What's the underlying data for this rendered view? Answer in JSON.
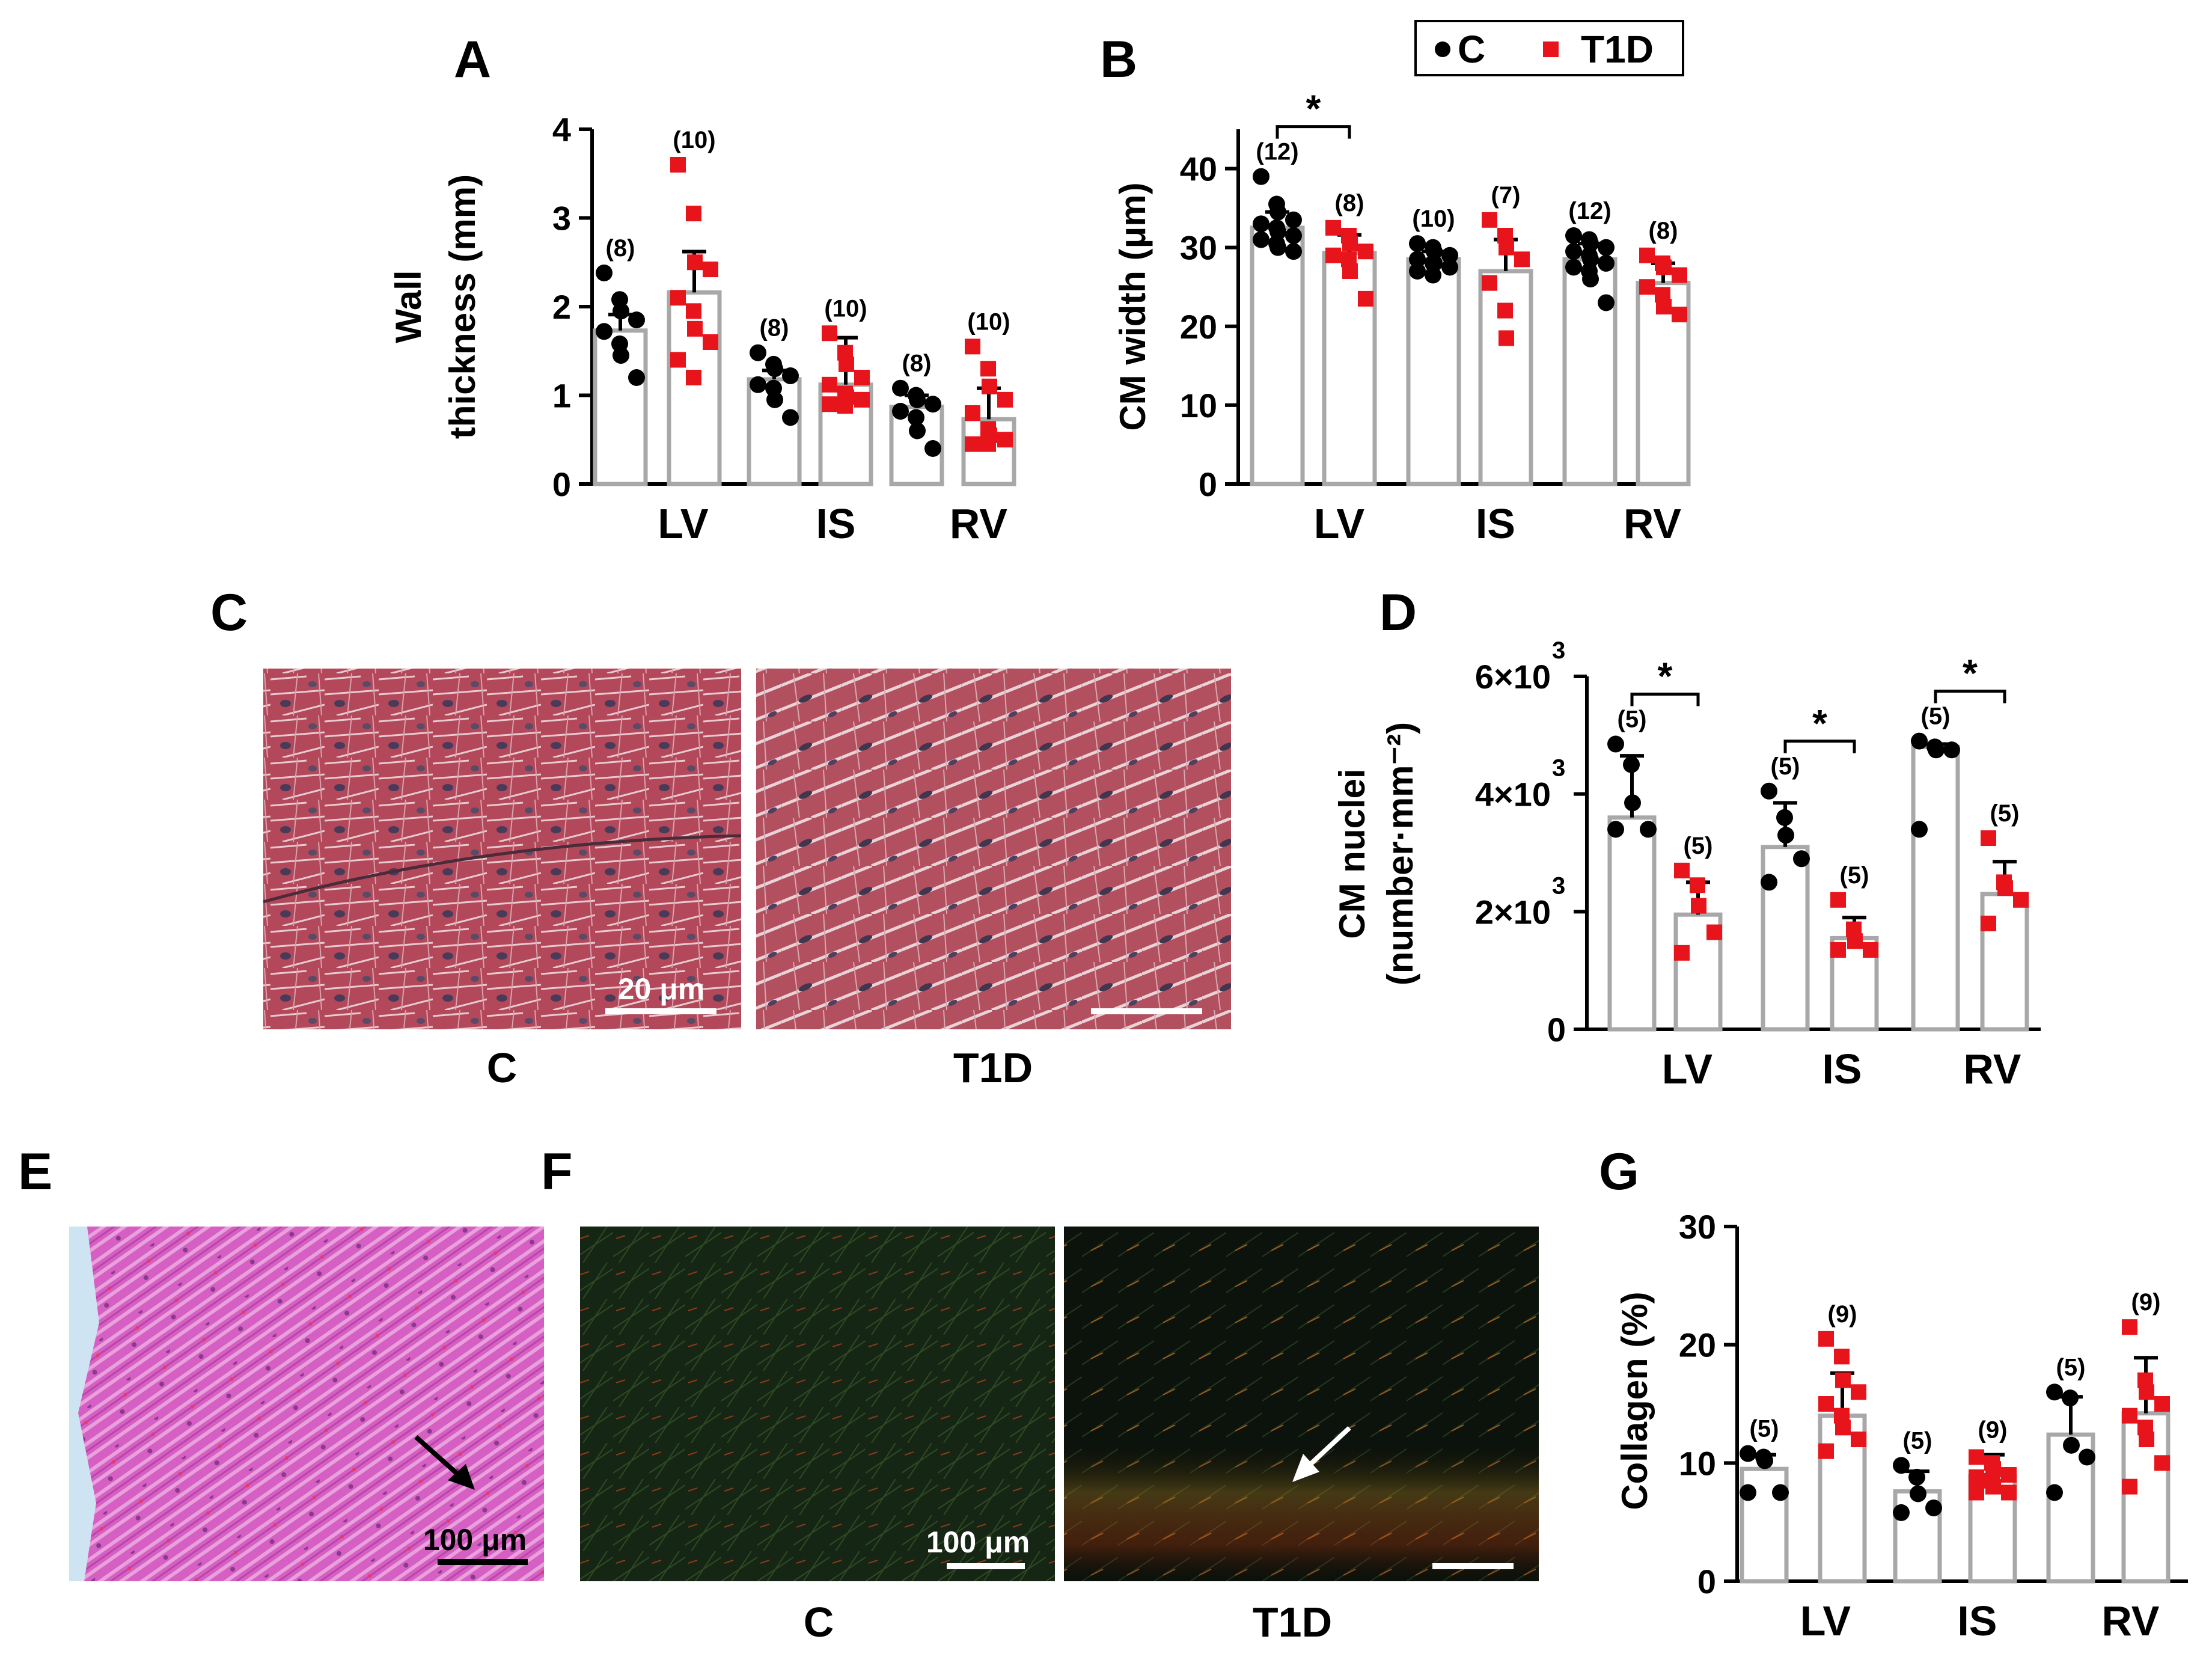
{
  "legend": {
    "entries": [
      {
        "label": "C",
        "color": "#000000",
        "marker": "circle"
      },
      {
        "label": "T1D",
        "color": "#e8141b",
        "marker": "square"
      }
    ]
  },
  "chart_data": [
    {
      "panel": "A",
      "type": "bar",
      "ylabel_lines": [
        "Wall",
        "thickness (mm)"
      ],
      "ylim": [
        0,
        4
      ],
      "yticks": [
        {
          "v": 0,
          "t": "0"
        },
        {
          "v": 1,
          "t": "1"
        },
        {
          "v": 2,
          "t": "2"
        },
        {
          "v": 3,
          "t": "3"
        },
        {
          "v": 4,
          "t": "4"
        }
      ],
      "categories": [
        "LV",
        "IS",
        "RV"
      ],
      "series": [
        {
          "name": "C",
          "values": [
            1.73,
            1.18,
            0.87
          ],
          "errors": [
            0.18,
            0.1,
            0.13
          ],
          "n": [
            "(8)",
            "(8)",
            "(8)"
          ],
          "points": [
            [
              2.38,
              2.08,
              1.95,
              1.85,
              1.72,
              1.58,
              1.45,
              1.2
            ],
            [
              1.48,
              1.35,
              1.3,
              1.22,
              1.12,
              1.08,
              0.95,
              0.75
            ],
            [
              1.08,
              1.0,
              0.95,
              0.9,
              0.82,
              0.75,
              0.6,
              0.4
            ]
          ]
        },
        {
          "name": "T1D",
          "values": [
            2.16,
            1.12,
            0.73
          ],
          "errors": [
            0.46,
            0.53,
            0.35
          ],
          "n": [
            "(10)",
            "(10)",
            "(10)"
          ],
          "points": [
            [
              3.6,
              3.05,
              2.5,
              2.42,
              2.1,
              1.95,
              1.75,
              1.6,
              1.4,
              1.2
            ],
            [
              1.7,
              1.48,
              1.35,
              1.2,
              1.12,
              1.02,
              0.98,
              0.95,
              0.9,
              0.88
            ],
            [
              1.55,
              1.3,
              1.1,
              0.95,
              0.8,
              0.62,
              0.55,
              0.5,
              0.45,
              0.45
            ]
          ]
        }
      ],
      "significance": []
    },
    {
      "panel": "B",
      "type": "bar",
      "ylabel_lines": [
        "CM width (μm)"
      ],
      "ylim": [
        0,
        45
      ],
      "yticks": [
        {
          "v": 0,
          "t": "0"
        },
        {
          "v": 10,
          "t": "10"
        },
        {
          "v": 20,
          "t": "20"
        },
        {
          "v": 30,
          "t": "30"
        },
        {
          "v": 40,
          "t": "40"
        }
      ],
      "categories": [
        "LV",
        "IS",
        "RV"
      ],
      "series": [
        {
          "name": "C",
          "values": [
            32.5,
            28.5,
            28.5
          ],
          "errors": [
            2.0,
            1.0,
            2.0
          ],
          "n": [
            "(12)",
            "(10)",
            "(12)"
          ],
          "points": [
            [
              39,
              35.5,
              34.5,
              33.5,
              33,
              32.5,
              32,
              31.5,
              31,
              30.5,
              30,
              29.5
            ],
            [
              30.5,
              30,
              29.5,
              29,
              28.5,
              28,
              28,
              27.5,
              27,
              26.5
            ],
            [
              31.5,
              31,
              30.5,
              30,
              29.5,
              29,
              28.5,
              28,
              27.5,
              27,
              26,
              23
            ]
          ]
        },
        {
          "name": "T1D",
          "values": [
            29.3,
            27.0,
            25.5
          ],
          "errors": [
            2.3,
            4.0,
            2.5
          ],
          "n": [
            "(8)",
            "(7)",
            "(8)"
          ],
          "points": [
            [
              32.5,
              31.5,
              30.5,
              29.5,
              29,
              28.5,
              27,
              23.5
            ],
            [
              33.5,
              31.5,
              30,
              28.5,
              25.5,
              22,
              18.5
            ],
            [
              29,
              28,
              27.5,
              26.5,
              25,
              24,
              22.5,
              21.5
            ]
          ]
        }
      ],
      "significance": [
        {
          "category": "LV",
          "label": "*"
        }
      ]
    },
    {
      "panel": "D",
      "type": "bar",
      "ylabel_lines": [
        "CM nuclei",
        "(number·mm⁻²)"
      ],
      "ylim": [
        0,
        6000
      ],
      "yticks": [
        {
          "v": 0,
          "t": "0"
        },
        {
          "v": 2000,
          "t": "2×10"
        },
        {
          "v": 4000,
          "t": "4×10"
        },
        {
          "v": 6000,
          "t": "6×10"
        }
      ],
      "ytick_exponent": "3",
      "categories": [
        "LV",
        "IS",
        "RV"
      ],
      "series": [
        {
          "name": "C",
          "values": [
            3600,
            3100,
            4800
          ],
          "errors": [
            1050,
            750,
            50
          ],
          "n": [
            "(5)",
            "(5)",
            "(5)"
          ],
          "points": [
            [
              4850,
              4500,
              3850,
              3400,
              3400
            ],
            [
              4050,
              3600,
              3300,
              2900,
              2500
            ],
            [
              4900,
              4800,
              4750,
              4750,
              3400
            ]
          ]
        },
        {
          "name": "T1D",
          "values": [
            1950,
            1550,
            2300
          ],
          "errors": [
            550,
            350,
            550
          ],
          "n": [
            "(5)",
            "(5)",
            "(5)"
          ],
          "points": [
            [
              2700,
              2450,
              2100,
              1650,
              1300
            ],
            [
              2200,
              1700,
              1500,
              1350,
              1350
            ],
            [
              3250,
              2500,
              2400,
              2200,
              1800
            ]
          ]
        }
      ],
      "significance": [
        {
          "category": "LV",
          "label": "*"
        },
        {
          "category": "IS",
          "label": "*"
        },
        {
          "category": "RV",
          "label": "*"
        }
      ]
    },
    {
      "panel": "G",
      "type": "bar",
      "ylabel_lines": [
        "Collagen (%)"
      ],
      "ylim": [
        0,
        30
      ],
      "yticks": [
        {
          "v": 0,
          "t": "0"
        },
        {
          "v": 10,
          "t": "10"
        },
        {
          "v": 20,
          "t": "20"
        },
        {
          "v": 30,
          "t": "30"
        }
      ],
      "categories": [
        "LV",
        "IS",
        "RV"
      ],
      "series": [
        {
          "name": "C",
          "values": [
            9.5,
            7.6,
            12.4
          ],
          "errors": [
            1.2,
            1.7,
            3.2
          ],
          "n": [
            "(5)",
            "(5)",
            "(5)"
          ],
          "points": [
            [
              10.8,
              10.5,
              10.2,
              7.5,
              7.5
            ],
            [
              9.8,
              8.8,
              7.4,
              6.2,
              5.8
            ],
            [
              16,
              15.5,
              11.5,
              10.5,
              7.5
            ]
          ]
        },
        {
          "name": "T1D",
          "values": [
            14.0,
            8.9,
            14.2
          ],
          "errors": [
            3.6,
            1.8,
            4.7
          ],
          "n": [
            "(9)",
            "(9)",
            "(9)"
          ],
          "points": [
            [
              20.5,
              19,
              17,
              16,
              15,
              14,
              13,
              12,
              11
            ],
            [
              10.5,
              10,
              9.5,
              9,
              8.8,
              8.5,
              8,
              7.5,
              7.5
            ],
            [
              21.5,
              17,
              16,
              15,
              14,
              13,
              12,
              10,
              8
            ]
          ]
        }
      ],
      "significance": []
    }
  ],
  "panels": {
    "A": {
      "letter": "A"
    },
    "B": {
      "letter": "B"
    },
    "C": {
      "letter": "C",
      "images": [
        {
          "caption": "C",
          "scale": "20 μm"
        },
        {
          "caption": "T1D",
          "scale": ""
        }
      ]
    },
    "D": {
      "letter": "D"
    },
    "E": {
      "letter": "E",
      "scale": "100 μm"
    },
    "F": {
      "letter": "F",
      "images": [
        {
          "caption": "C",
          "scale": "100 μm"
        },
        {
          "caption": "T1D",
          "scale": ""
        }
      ]
    },
    "G": {
      "letter": "G"
    }
  }
}
